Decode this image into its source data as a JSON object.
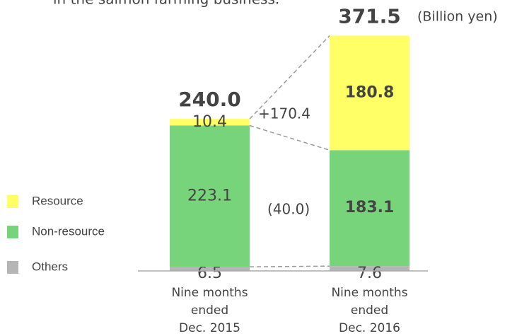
{
  "chart_data": {
    "type": "stacked_bar",
    "subtitle": "in the salmon farming business.",
    "unit_label": "(Billion yen)",
    "categories": [
      [
        "Nine months",
        "ended",
        "Dec. 2015"
      ],
      [
        "Nine months",
        "ended",
        "Dec. 2016"
      ]
    ],
    "series": [
      {
        "name": "Others",
        "color": "#b5b5b5",
        "values": [
          6.5,
          7.6
        ]
      },
      {
        "name": "Non-resource",
        "color": "#77d47a",
        "values": [
          223.1,
          183.1
        ]
      },
      {
        "name": "Resource",
        "color": "#ffff66",
        "values": [
          10.4,
          180.8
        ]
      }
    ],
    "totals": {
      "values": [
        240.0,
        371.5
      ],
      "value_labels": [
        "240.0",
        "371.5"
      ]
    },
    "annotations": [
      "+170.4",
      "(40.0)"
    ],
    "ylim": [
      0,
      420
    ]
  }
}
